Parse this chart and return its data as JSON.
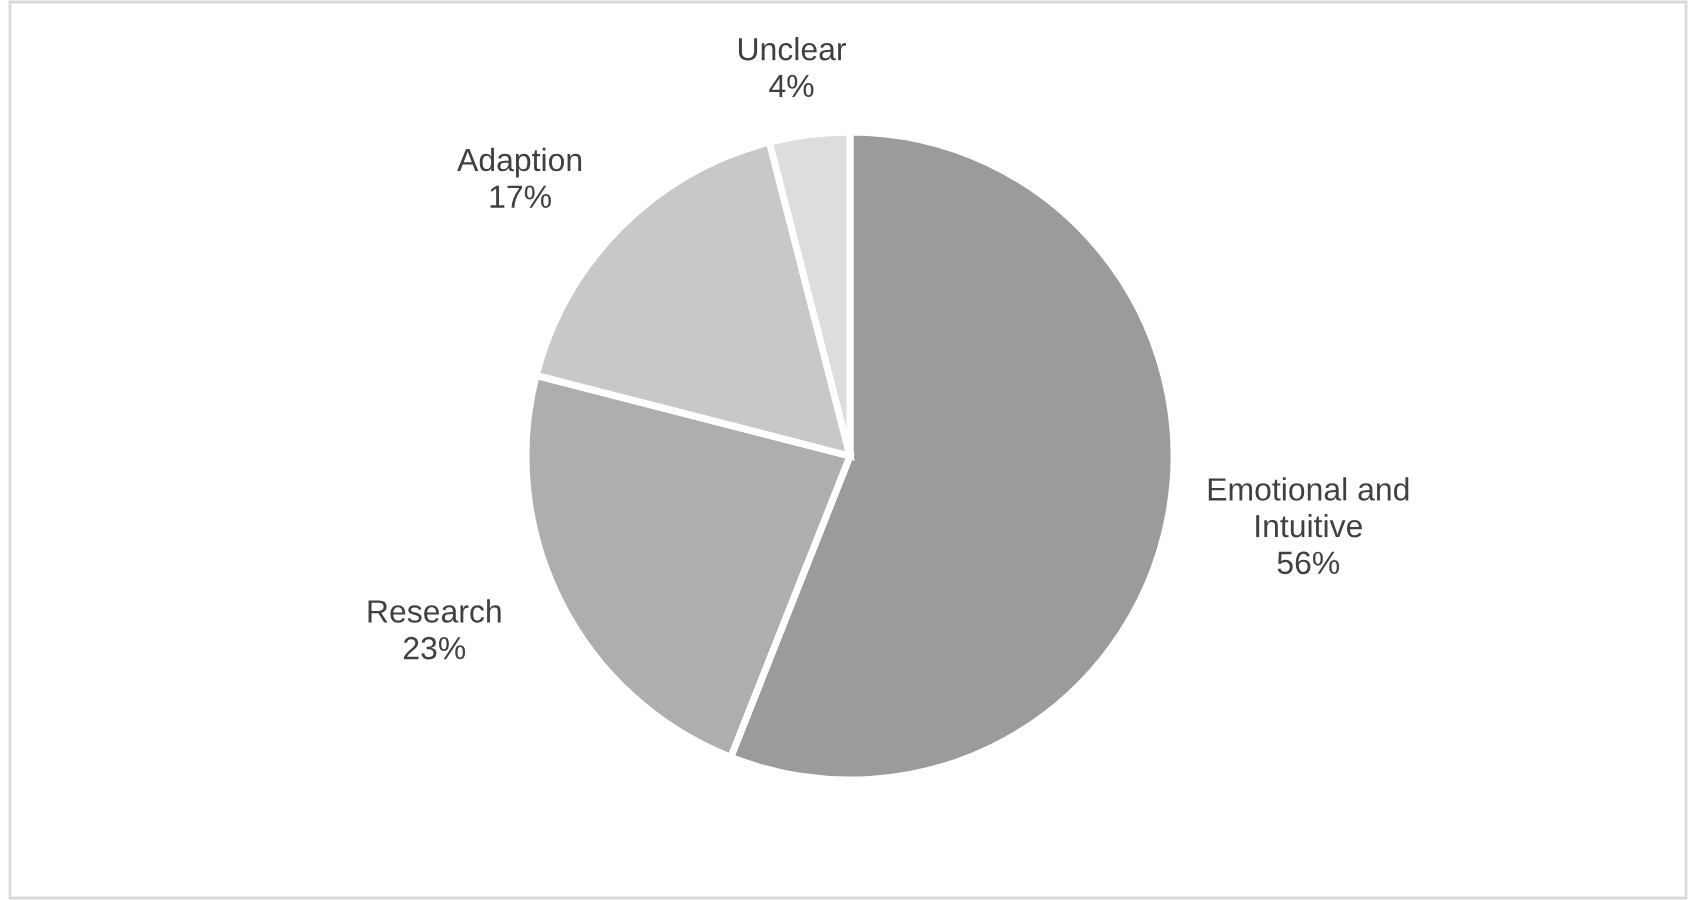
{
  "chart_data": {
    "type": "pie",
    "categories": [
      "Emotional and Intuitive",
      "Research",
      "Adaption",
      "Unclear"
    ],
    "values": [
      56,
      23,
      17,
      4
    ],
    "value_labels": [
      "56%",
      "23%",
      "17%",
      "4%"
    ],
    "colors": [
      "#9a9b9a",
      "#aeaeae",
      "#c7c8c7",
      "#dcdddc"
    ],
    "legend": false
  }
}
